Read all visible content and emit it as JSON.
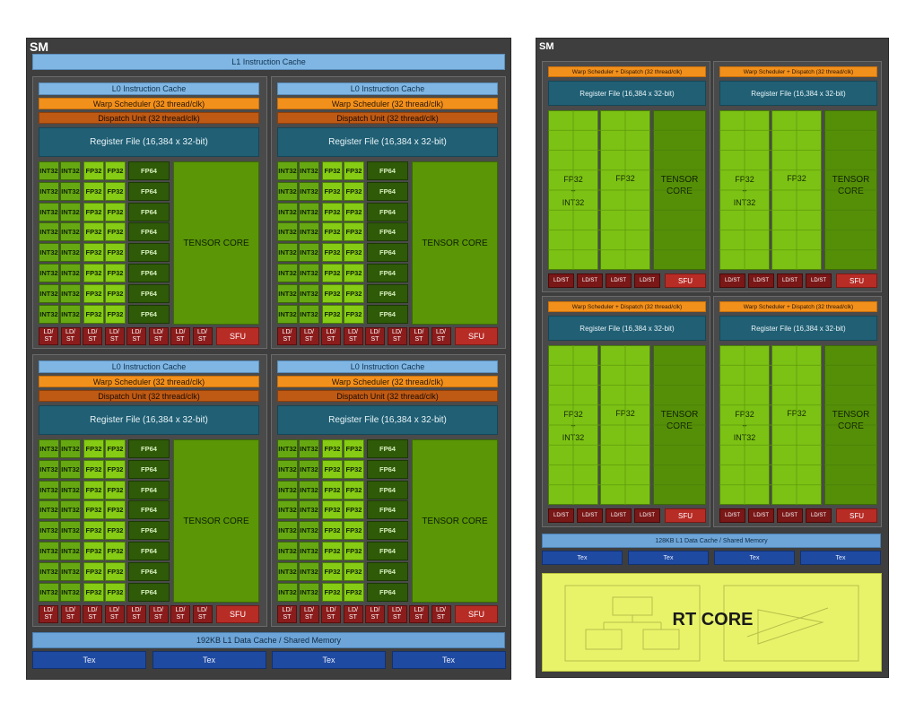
{
  "volta": {
    "title": "SM",
    "l1_instruction_cache": "L1 Instruction Cache",
    "partition": {
      "l0_cache": "L0 Instruction Cache",
      "warp_scheduler": "Warp Scheduler (32 thread/clk)",
      "dispatch_unit": "Dispatch Unit (32 thread/clk)",
      "register_file": "Register File (16,384 x 32-bit)",
      "int32": "INT32",
      "fp32": "FP32",
      "fp64": "FP64",
      "tensor_core": "TENSOR CORE",
      "ldst_line1": "LD/",
      "ldst_line2": "ST",
      "sfu": "SFU"
    },
    "l1_data_cache": "192KB L1 Data Cache / Shared Memory",
    "tex": [
      "Tex",
      "Tex",
      "Tex",
      "Tex"
    ]
  },
  "turing": {
    "title": "SM",
    "partition": {
      "warp_dispatch": "Warp Scheduler + Dispatch (32 thread/clk)",
      "register_file": "Register File (16,384 x 32-bit)",
      "fp32_int32_line1": "FP32",
      "fp32_int32_line2": "+",
      "fp32_int32_line3": "INT32",
      "fp32": "FP32",
      "tensor_line1": "TENSOR",
      "tensor_line2": "CORE",
      "ldst": "LD/ST",
      "sfu": "SFU"
    },
    "l1_data_cache": "128KB L1 Data Cache / Shared Memory",
    "tex": [
      "Tex",
      "Tex",
      "Tex",
      "Tex"
    ],
    "rt_core": "RT CORE"
  },
  "colors": {
    "background": "#3e3e3e",
    "int32": "#66a812",
    "fp32": "#86cb14",
    "fp64": "#2f5a07",
    "tensor": "#5a9606",
    "register_file": "#205f74",
    "warp_scheduler": "#f2901c",
    "dispatch": "#bf5a14",
    "ldst": "#8b1c1c",
    "sfu": "#b82c26",
    "tex": "#1f4aa2",
    "rt_core": "#e9f36a"
  }
}
